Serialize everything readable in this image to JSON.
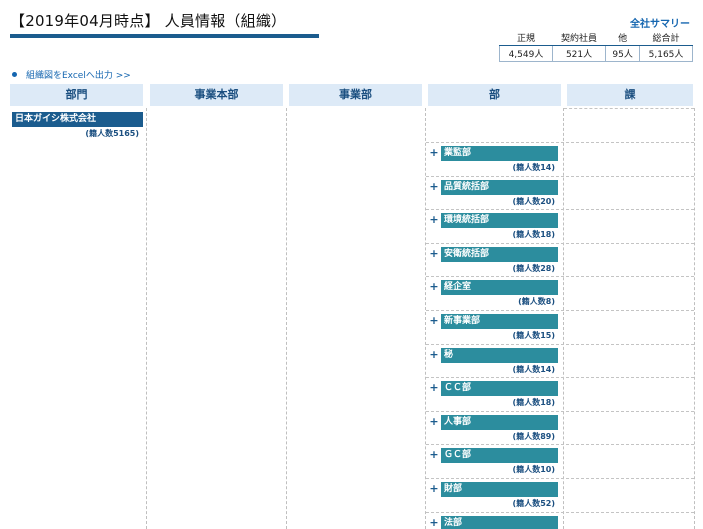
{
  "page": {
    "title": "【2019年04月時点】 人員情報（組織）",
    "export_link": "組織図をExcelへ出力 >>"
  },
  "summary": {
    "title": "全社サマリー",
    "headers": [
      "正規",
      "契約社員",
      "他",
      "総合計"
    ],
    "values": [
      "4,549人",
      "521人",
      "95人",
      "5,165人"
    ]
  },
  "columns": [
    "部門",
    "事業本部",
    "事業部",
    "部",
    "課"
  ],
  "root": {
    "name": "日本ガイシ株式会社",
    "count": "(籍人数5165)"
  },
  "departments": [
    {
      "plus": "+",
      "name": "業監部",
      "count": "(籍人数14)"
    },
    {
      "plus": "+",
      "name": "品質統括部",
      "count": "(籍人数20)"
    },
    {
      "plus": "+",
      "name": "環境統括部",
      "count": "(籍人数18)"
    },
    {
      "plus": "+",
      "name": "安衛統括部",
      "count": "(籍人数28)"
    },
    {
      "plus": "+",
      "name": "経企室",
      "count": "(籍人数8)"
    },
    {
      "plus": "+",
      "name": "新事業部",
      "count": "(籍人数15)"
    },
    {
      "plus": "+",
      "name": "秘",
      "count": "(籍人数14)"
    },
    {
      "plus": "+",
      "name": "ＣＣ部",
      "count": "(籍人数18)"
    },
    {
      "plus": "+",
      "name": "人事部",
      "count": "(籍人数89)"
    },
    {
      "plus": "+",
      "name": "ＧＣ部",
      "count": "(籍人数10)"
    },
    {
      "plus": "+",
      "name": "財部",
      "count": "(籍人数52)"
    },
    {
      "plus": "+",
      "name": "法部",
      "count": ""
    }
  ]
}
